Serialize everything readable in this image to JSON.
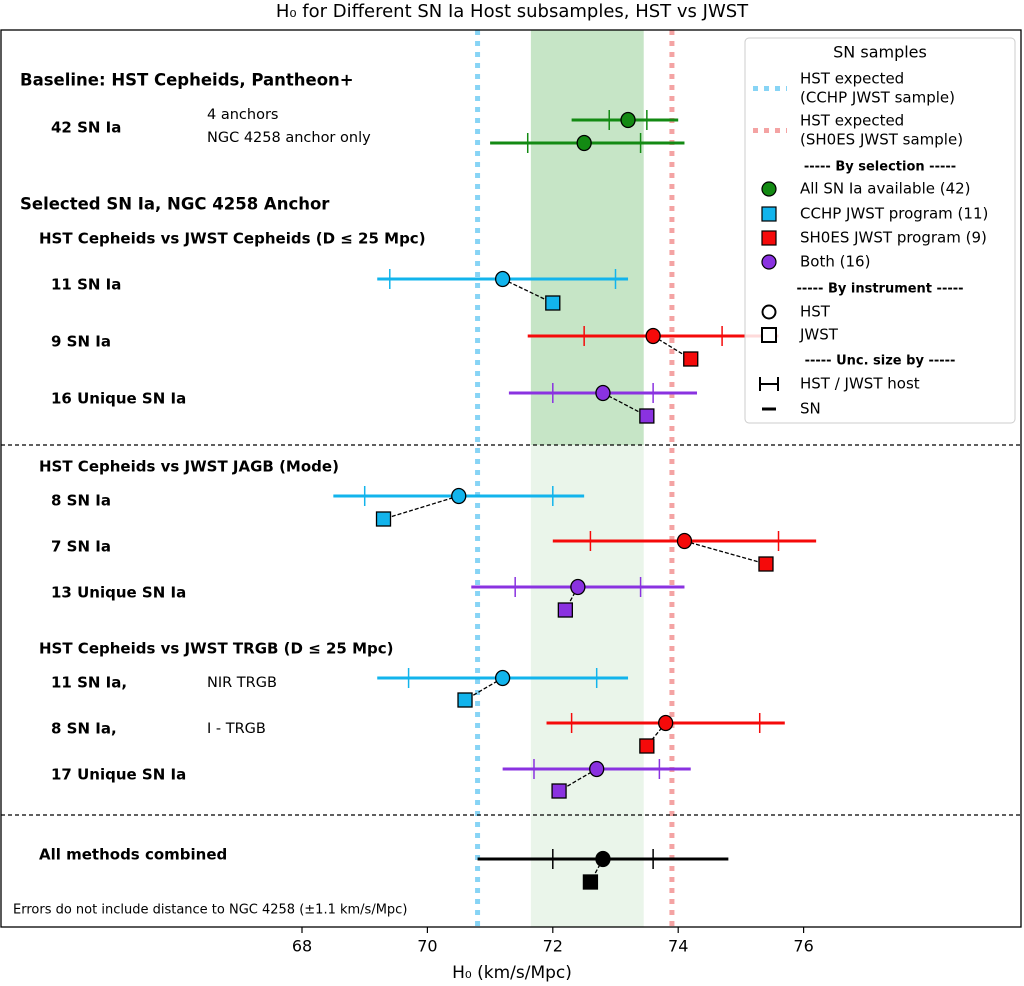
{
  "chart_data": {
    "type": "forest",
    "title": "H₀ for Different SN Ia Host subsamples, HST vs JWST",
    "xlabel": "H₀ (km/s/Mpc)",
    "ylabel": "",
    "xlim": [
      63.2,
      84.3
    ],
    "xticks": [
      68,
      70,
      72,
      74,
      76
    ],
    "grid": false,
    "legend_position": "top-right",
    "reference_lines": [
      {
        "value": 70.8,
        "color": "#87d4f5",
        "style": "dotted"
      },
      {
        "value": 73.9,
        "color": "#f4a3a3",
        "style": "dotted"
      }
    ],
    "band": {
      "from": 71.65,
      "to": 73.45,
      "color_top": "#c6e5c6",
      "color_bottom": "#eaf5ea"
    },
    "colors": {
      "green": "#138a13",
      "cyan": "#12b4ec",
      "red": "#f50a0a",
      "purple": "#8a32e0",
      "black": "#000000"
    },
    "headers": [
      {
        "id": "baseline",
        "text": "Baseline: HST Cepheids, Pantheon+",
        "level": 1
      },
      {
        "id": "selected",
        "text": "Selected SN Ia, NGC 4258 Anchor",
        "level": 1
      },
      {
        "id": "cepheids",
        "text": "HST Cepheids vs JWST Cepheids (D ≤ 25 Mpc)",
        "level": 2
      },
      {
        "id": "jagb",
        "text": "HST Cepheids vs JWST JAGB (Mode)",
        "level": 2
      },
      {
        "id": "trgb",
        "text": "HST Cepheids vs JWST TRGB (D ≤ 25 Mpc)",
        "level": 2
      },
      {
        "id": "combined",
        "text": "All methods combined",
        "level": 2
      }
    ],
    "row_labels": [
      {
        "text": "42 SN Ia"
      },
      {
        "text": "11 SN Ia"
      },
      {
        "text": "9 SN Ia"
      },
      {
        "text": "16 Unique SN Ia"
      },
      {
        "text": "8 SN Ia"
      },
      {
        "text": "7 SN Ia"
      },
      {
        "text": "13 Unique SN Ia"
      },
      {
        "text": "11 SN Ia,"
      },
      {
        "text": "8 SN Ia,"
      },
      {
        "text": "17 Unique SN Ia"
      }
    ],
    "notes": [
      {
        "text": "4 anchors"
      },
      {
        "text": "NGC 4258 anchor only"
      },
      {
        "text": "NIR TRGB"
      },
      {
        "text": "I - TRGB"
      }
    ],
    "footnote": "Errors do not include distance to NGC 4258 (±1.1 km/s/Mpc)",
    "series": [
      {
        "row": "4 anchors",
        "color": "green",
        "hst": 73.2,
        "jwst": null,
        "sn_err": [
          72.3,
          74.0
        ],
        "host_err": [
          72.9,
          73.5
        ]
      },
      {
        "row": "NGC 4258 anchor only",
        "color": "green",
        "hst": 72.5,
        "jwst": null,
        "sn_err": [
          71.0,
          74.1
        ],
        "host_err": [
          71.6,
          73.4
        ]
      },
      {
        "row": "Cepheids 11 SN Ia",
        "color": "cyan",
        "hst": 71.2,
        "jwst": 72.0,
        "sn_err": [
          69.2,
          73.2
        ],
        "host_err": [
          69.4,
          73.0
        ]
      },
      {
        "row": "Cepheids 9 SN Ia",
        "color": "red",
        "hst": 73.6,
        "jwst": 74.2,
        "sn_err": [
          71.6,
          75.6
        ],
        "host_err": [
          72.5,
          74.7
        ]
      },
      {
        "row": "Cepheids 16 Unique SN Ia",
        "color": "purple",
        "hst": 72.8,
        "jwst": 73.5,
        "sn_err": [
          71.3,
          74.3
        ],
        "host_err": [
          72.0,
          73.6
        ]
      },
      {
        "row": "JAGB 8 SN Ia",
        "color": "cyan",
        "hst": 70.5,
        "jwst": 69.3,
        "sn_err": [
          68.5,
          72.5
        ],
        "host_err": [
          69.0,
          72.0
        ]
      },
      {
        "row": "JAGB 7 SN Ia",
        "color": "red",
        "hst": 74.1,
        "jwst": 75.4,
        "sn_err": [
          72.0,
          76.2
        ],
        "host_err": [
          72.6,
          75.6
        ]
      },
      {
        "row": "JAGB 13 Unique SN Ia",
        "color": "purple",
        "hst": 72.4,
        "jwst": 72.2,
        "sn_err": [
          70.7,
          74.1
        ],
        "host_err": [
          71.4,
          73.4
        ]
      },
      {
        "row": "TRGB 11 SN Ia, NIR TRGB",
        "color": "cyan",
        "hst": 71.2,
        "jwst": 70.6,
        "sn_err": [
          69.2,
          73.2
        ],
        "host_err": [
          69.7,
          72.7
        ]
      },
      {
        "row": "TRGB 8 SN Ia, I - TRGB",
        "color": "red",
        "hst": 73.8,
        "jwst": 73.5,
        "sn_err": [
          71.9,
          75.7
        ],
        "host_err": [
          72.3,
          75.3
        ]
      },
      {
        "row": "TRGB 17 Unique SN Ia",
        "color": "purple",
        "hst": 72.7,
        "jwst": 72.1,
        "sn_err": [
          71.2,
          74.2
        ],
        "host_err": [
          71.7,
          73.7
        ]
      },
      {
        "row": "All methods combined",
        "color": "black",
        "hst": 72.8,
        "jwst": 72.6,
        "sn_err": [
          70.8,
          74.8
        ],
        "host_err": [
          72.0,
          73.6
        ]
      }
    ],
    "legend": {
      "title": "SN samples",
      "items": [
        {
          "kind": "line",
          "color": "#87d4f5",
          "label1": "HST expected",
          "label2": "(CCHP JWST sample)"
        },
        {
          "kind": "line",
          "color": "#f4a3a3",
          "label1": "HST expected",
          "label2": "(SH0ES JWST sample)"
        },
        {
          "kind": "header",
          "label1": "----- By selection -----"
        },
        {
          "kind": "circle",
          "color": "#138a13",
          "label1": "All SN Ia available (42)"
        },
        {
          "kind": "square",
          "color": "#12b4ec",
          "label1": "CCHP JWST program (11)"
        },
        {
          "kind": "square",
          "color": "#f50a0a",
          "label1": "SH0ES JWST program (9)"
        },
        {
          "kind": "circle",
          "color": "#8a32e0",
          "label1": "Both (16)"
        },
        {
          "kind": "header",
          "label1": "----- By instrument -----"
        },
        {
          "kind": "circle-open",
          "label1": "HST"
        },
        {
          "kind": "square-open",
          "label1": "JWST"
        },
        {
          "kind": "header",
          "label1": "----- Unc. size by -----"
        },
        {
          "kind": "capbar",
          "label1": "HST / JWST host"
        },
        {
          "kind": "dash",
          "label1": "SN"
        }
      ]
    }
  }
}
